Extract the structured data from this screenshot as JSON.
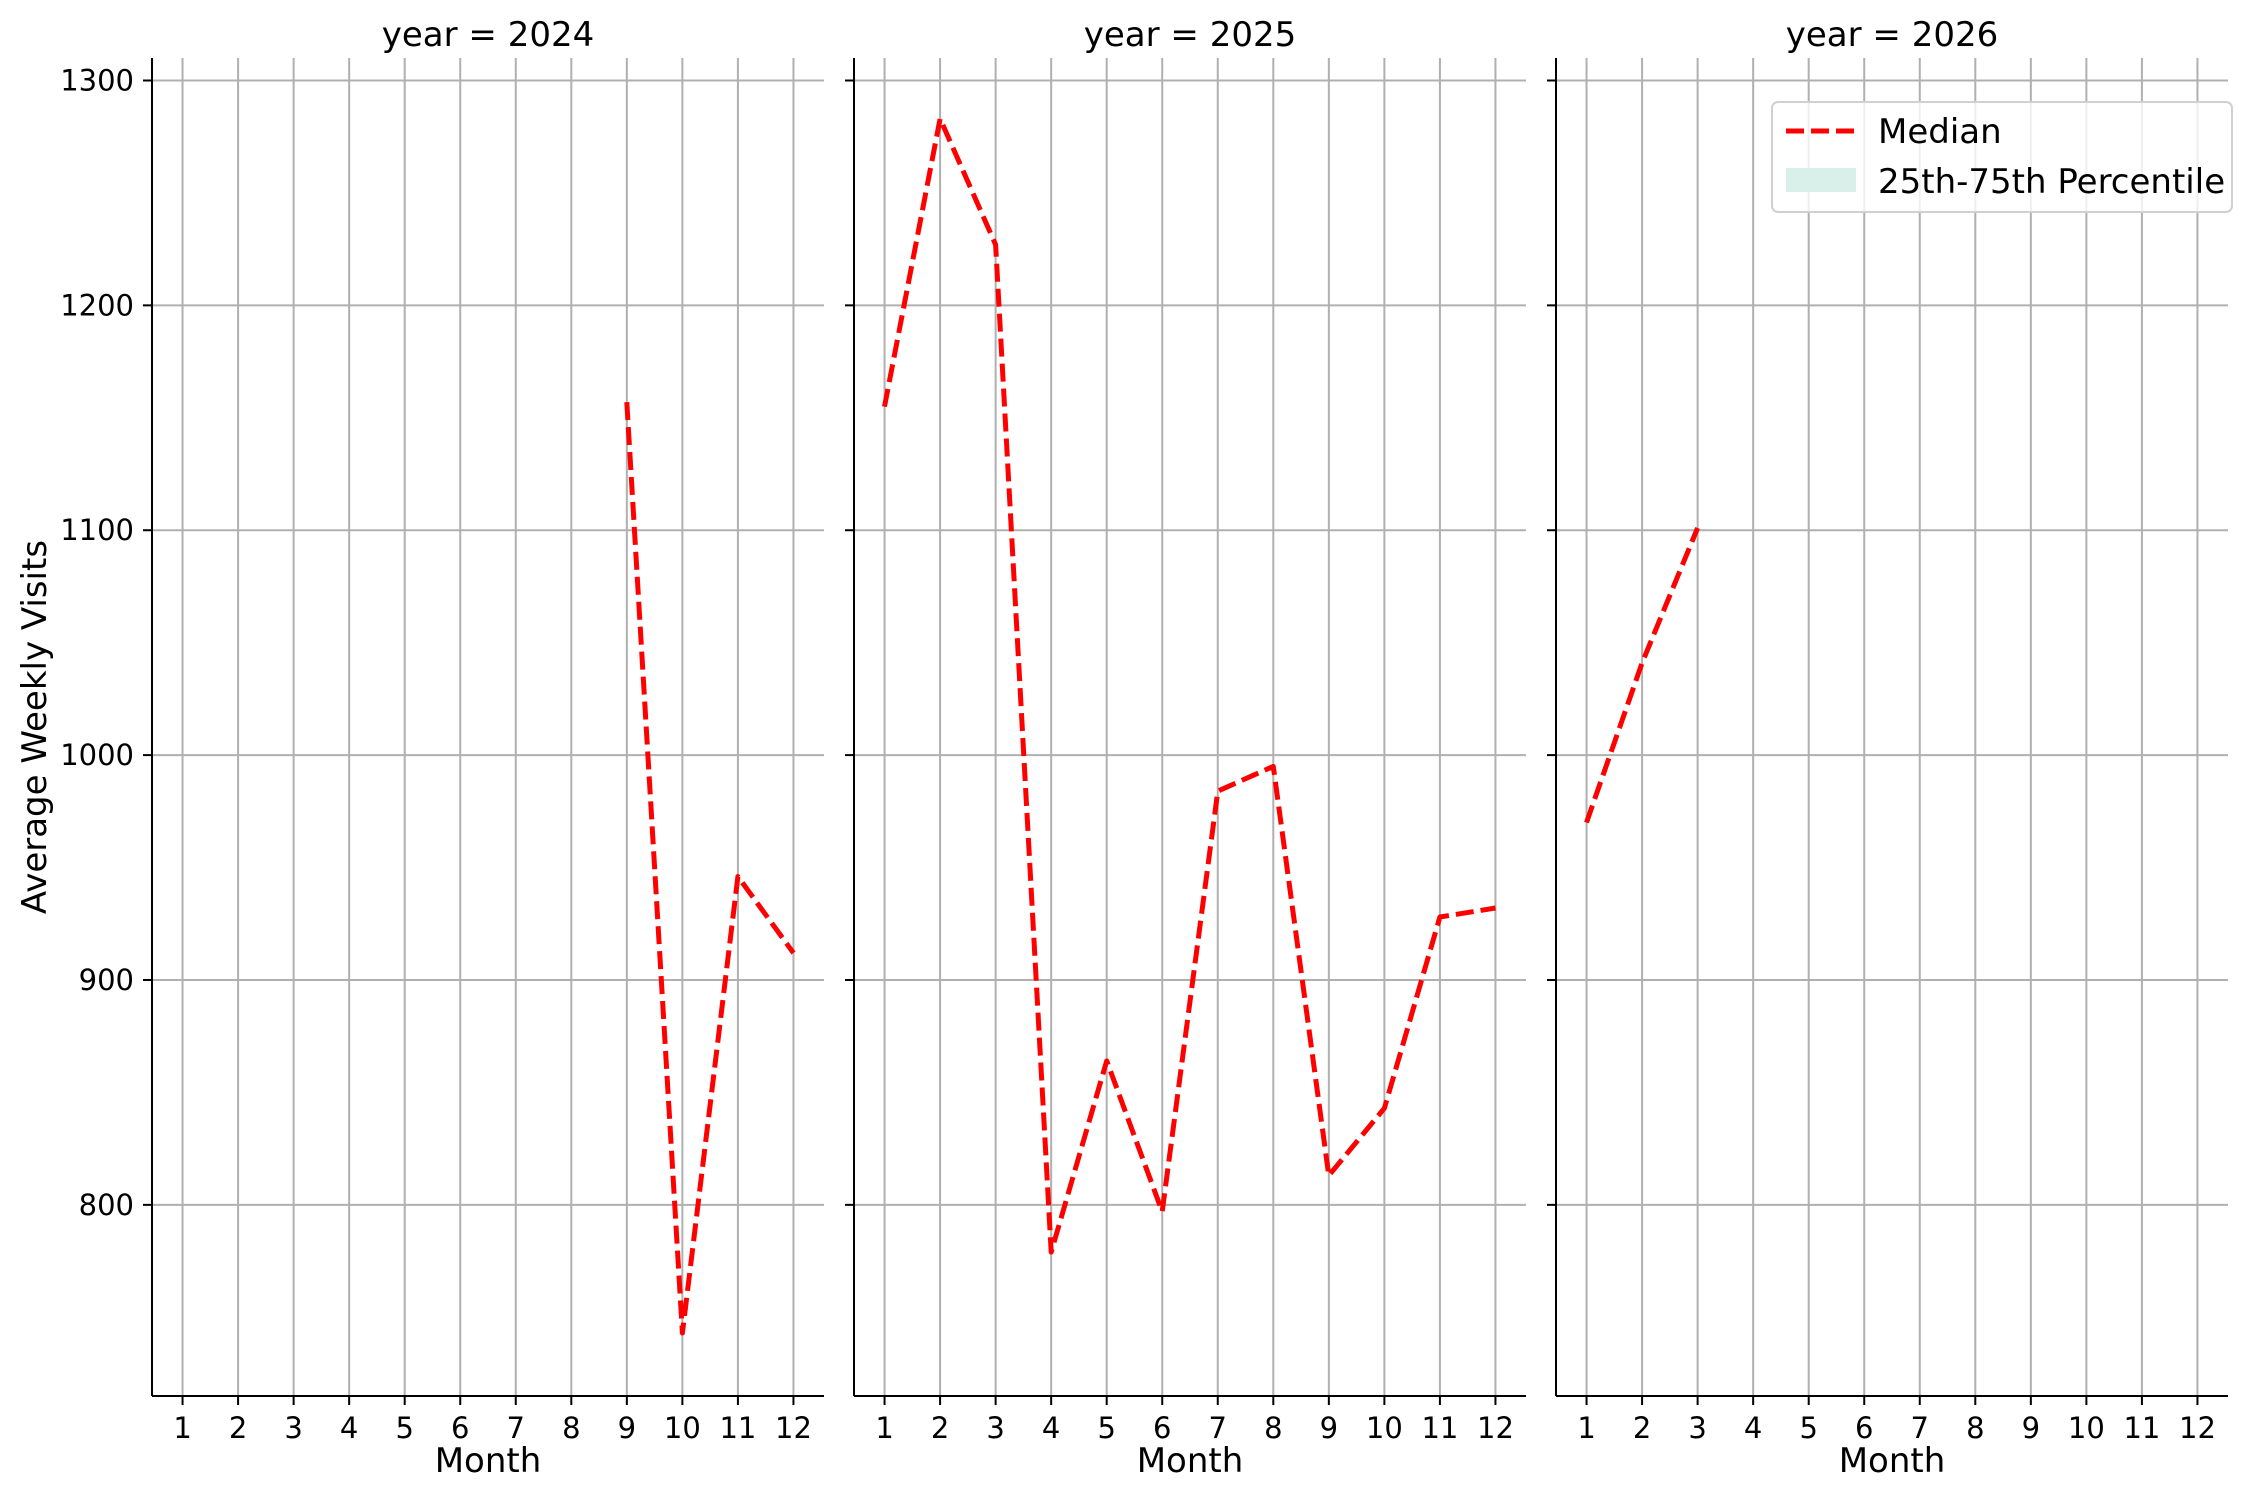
{
  "chart_data": {
    "type": "line",
    "ylabel": "Average Weekly Visits",
    "ylim": [
      715,
      1310
    ],
    "yticks": [
      800,
      900,
      1000,
      1100,
      1200,
      1300
    ],
    "xlim": [
      0.45,
      12.55
    ],
    "xticks": [
      1,
      2,
      3,
      4,
      5,
      6,
      7,
      8,
      9,
      10,
      11,
      12
    ],
    "grid": true,
    "legend": {
      "position": "upper right of last panel",
      "entries": [
        {
          "label": "Median",
          "style": "dashed-line",
          "color": "#ff0000"
        },
        {
          "label": "25th-75th Percentile",
          "style": "filled-band",
          "color": "#d9efe9"
        }
      ]
    },
    "panels": [
      {
        "title": "year = 2024",
        "xlabel": "Month",
        "series": [
          {
            "name": "Median",
            "x": [
              9,
              10,
              11,
              12
            ],
            "values": [
              1157,
              743,
              946,
              912
            ]
          }
        ]
      },
      {
        "title": "year = 2025",
        "xlabel": "Month",
        "series": [
          {
            "name": "Median",
            "x": [
              1,
              2,
              3,
              4,
              5,
              6,
              7,
              8,
              9,
              10,
              11,
              12
            ],
            "values": [
              1155,
              1283,
              1227,
              779,
              864,
              797,
              984,
              995,
              813,
              843,
              928,
              932
            ]
          }
        ]
      },
      {
        "title": "year = 2026",
        "xlabel": "Month",
        "series": [
          {
            "name": "Median",
            "x": [
              1,
              2,
              3
            ],
            "values": [
              970,
              1041,
              1101
            ]
          }
        ]
      }
    ]
  }
}
